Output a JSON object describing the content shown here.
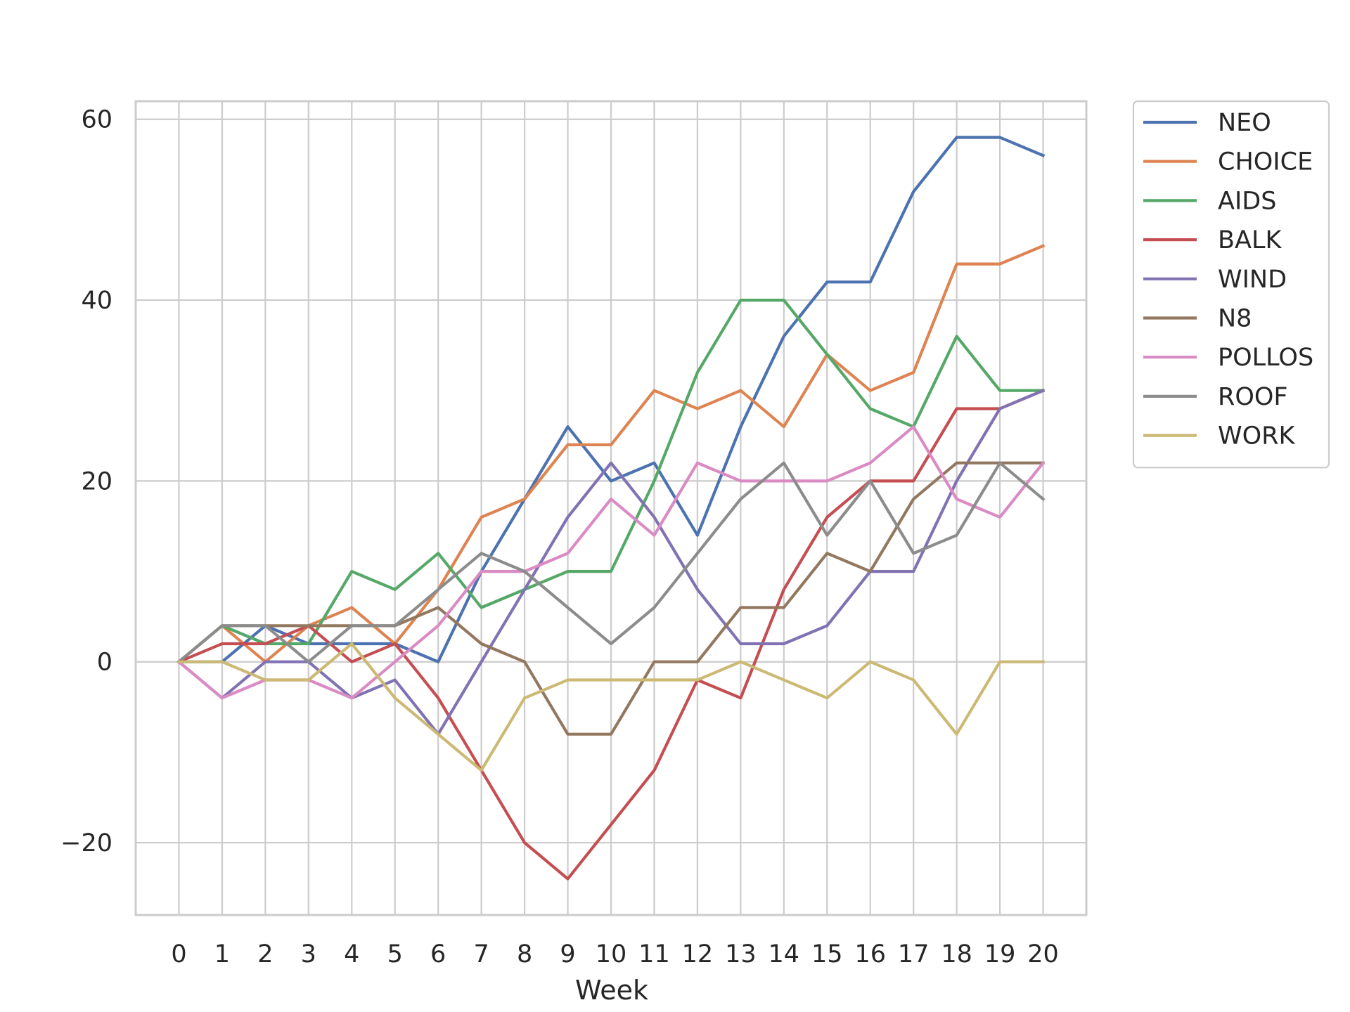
{
  "chart_data": {
    "type": "line",
    "xlabel": "Week",
    "ylabel": "",
    "xlim": [
      -1,
      21
    ],
    "ylim": [
      -28,
      62
    ],
    "x_ticks": [
      0,
      1,
      2,
      3,
      4,
      5,
      6,
      7,
      8,
      9,
      10,
      11,
      12,
      13,
      14,
      15,
      16,
      17,
      18,
      19,
      20
    ],
    "y_ticks": [
      -20,
      0,
      20,
      40,
      60
    ],
    "y_tick_labels": [
      "−20",
      "0",
      "20",
      "40",
      "60"
    ],
    "grid": true,
    "legend_position": "outside upper right",
    "x": [
      0,
      1,
      2,
      3,
      4,
      5,
      6,
      7,
      8,
      9,
      10,
      11,
      12,
      13,
      14,
      15,
      16,
      17,
      18,
      19,
      20
    ],
    "series": [
      {
        "name": "NEO",
        "color": "#4C72B0",
        "values": [
          0,
          0,
          4,
          2,
          2,
          2,
          0,
          10,
          18,
          26,
          20,
          22,
          14,
          26,
          36,
          42,
          42,
          52,
          58,
          58,
          56
        ]
      },
      {
        "name": "CHOICE",
        "color": "#DD8452",
        "values": [
          0,
          4,
          0,
          4,
          6,
          2,
          8,
          16,
          18,
          24,
          24,
          30,
          28,
          30,
          26,
          34,
          30,
          32,
          44,
          44,
          46
        ]
      },
      {
        "name": "AIDS",
        "color": "#55A868",
        "values": [
          0,
          4,
          2,
          2,
          10,
          8,
          12,
          6,
          8,
          10,
          10,
          20,
          32,
          40,
          40,
          34,
          28,
          26,
          36,
          30,
          30
        ]
      },
      {
        "name": "BALK",
        "color": "#C44E52",
        "values": [
          0,
          2,
          2,
          4,
          0,
          2,
          -4,
          -12,
          -20,
          -24,
          -18,
          -12,
          -2,
          -4,
          8,
          16,
          20,
          20,
          28,
          28,
          30
        ]
      },
      {
        "name": "WIND",
        "color": "#8172B3",
        "values": [
          0,
          -4,
          0,
          0,
          -4,
          -2,
          -8,
          0,
          8,
          16,
          22,
          16,
          8,
          2,
          2,
          4,
          10,
          10,
          20,
          28,
          30
        ]
      },
      {
        "name": "N8",
        "color": "#937860",
        "values": [
          0,
          4,
          4,
          4,
          4,
          4,
          6,
          2,
          0,
          -8,
          -8,
          0,
          0,
          6,
          6,
          12,
          10,
          18,
          22,
          22,
          22
        ]
      },
      {
        "name": "POLLOS",
        "color": "#DA8BC3",
        "values": [
          0,
          -4,
          -2,
          -2,
          -4,
          0,
          4,
          10,
          10,
          12,
          18,
          14,
          22,
          20,
          20,
          20,
          22,
          26,
          18,
          16,
          22
        ]
      },
      {
        "name": "ROOF",
        "color": "#8C8C8C",
        "values": [
          0,
          4,
          4,
          0,
          4,
          4,
          8,
          12,
          10,
          6,
          2,
          6,
          12,
          18,
          22,
          14,
          20,
          12,
          14,
          22,
          18
        ]
      },
      {
        "name": "WORK",
        "color": "#CCB974",
        "values": [
          0,
          0,
          -2,
          -2,
          2,
          -4,
          -8,
          -12,
          -4,
          -2,
          -2,
          -2,
          -2,
          0,
          -2,
          -4,
          0,
          -2,
          -8,
          0,
          0
        ]
      }
    ]
  }
}
